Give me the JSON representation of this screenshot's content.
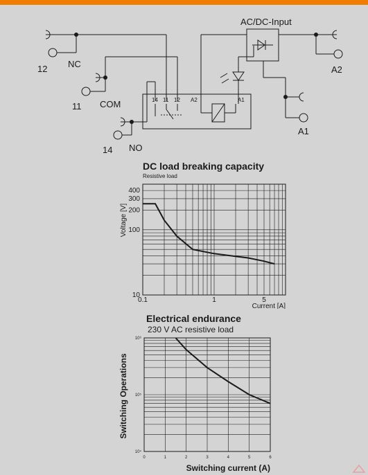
{
  "circuit": {
    "terminals": {
      "t12": "12",
      "nc": "NC",
      "t11": "11",
      "com": "COM",
      "t14": "14",
      "no": "NO",
      "a2": "A2",
      "a1": "A1"
    },
    "input_label": "AC/DC-Input",
    "relay_pins": {
      "p14": "14",
      "p11": "11",
      "p12": "12",
      "coil_a2": "A2",
      "coil_a1": "A1"
    }
  },
  "charts": {
    "dc_breaking": {
      "title": "DC load breaking capacity",
      "subtitle": "Resistive load",
      "ylabel": "Voltage [V]",
      "xlabel": "Current [A]",
      "y_ticks": [
        "400",
        "300",
        "200",
        "100",
        "10"
      ],
      "x_ticks": [
        "0.1",
        "1",
        "5"
      ]
    },
    "endurance": {
      "title": "Electrical endurance",
      "subtitle": "230 V AC resistive load",
      "ylabel": "Switching Operations",
      "xlabel": "Switching current (A)",
      "y_ticks": [
        "10⁶",
        "10⁵",
        "10⁴"
      ],
      "x_ticks": [
        "0",
        "1",
        "2",
        "3",
        "4",
        "5",
        "6"
      ]
    }
  },
  "chart_data": [
    {
      "type": "line",
      "title": "DC load breaking capacity",
      "subtitle": "Resistive load",
      "xlabel": "Current [A]",
      "ylabel": "Voltage [V]",
      "xscale": "log",
      "yscale": "log",
      "xlim": [
        0.1,
        10
      ],
      "ylim": [
        10,
        500
      ],
      "grid": true,
      "x": [
        0.1,
        0.15,
        0.2,
        0.3,
        0.5,
        1,
        2,
        3,
        5,
        7
      ],
      "y": [
        250,
        250,
        140,
        80,
        50,
        43,
        39,
        37,
        33,
        30
      ]
    },
    {
      "type": "line",
      "title": "Electrical endurance",
      "subtitle": "230 V AC resistive load",
      "xlabel": "Switching current (A)",
      "ylabel": "Switching Operations",
      "yscale": "log",
      "xlim": [
        0,
        6
      ],
      "ylim": [
        10000,
        1000000
      ],
      "grid": true,
      "x": [
        1.5,
        2,
        3,
        4,
        5,
        6
      ],
      "y": [
        1000000,
        620000,
        300000,
        170000,
        100000,
        70000
      ]
    }
  ]
}
